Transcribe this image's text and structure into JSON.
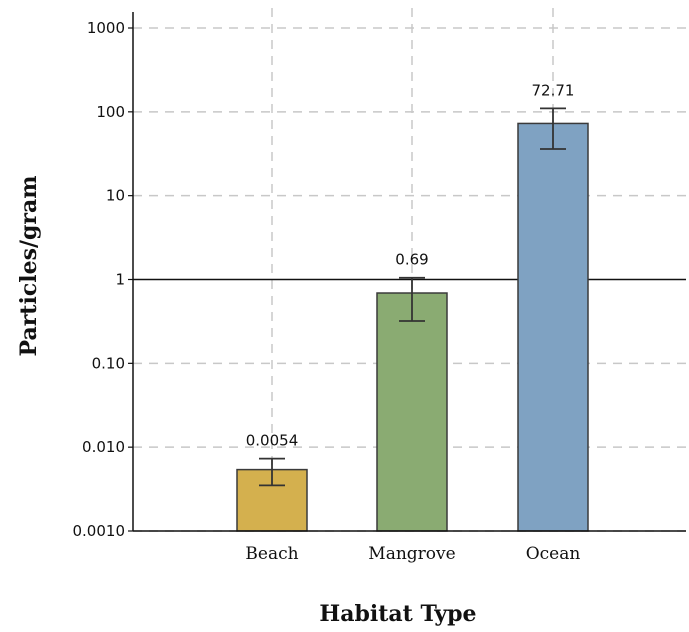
{
  "chart_data": {
    "type": "bar",
    "title": "",
    "xlabel": "Habitat Type",
    "ylabel": "Particles/gram",
    "yscale": "log",
    "ylim": [
      0.001,
      1000
    ],
    "yticks": [
      0.001,
      0.01,
      0.1,
      1,
      10,
      100,
      1000
    ],
    "ytick_labels": [
      "0.0010",
      "0.010",
      "0.10",
      "1",
      "10",
      "100",
      "1000"
    ],
    "grid": true,
    "reference_line": 1,
    "categories": [
      "Beach",
      "Mangrove",
      "Ocean"
    ],
    "values": [
      0.0054,
      0.69,
      72.71
    ],
    "value_labels": [
      "0.0054",
      "0.69",
      "72.71"
    ],
    "error_low": [
      0.0035,
      0.32,
      36
    ],
    "error_high": [
      0.0073,
      1.05,
      110
    ],
    "colors": [
      "#d4b04e",
      "#8aab72",
      "#7fa2c2"
    ]
  }
}
